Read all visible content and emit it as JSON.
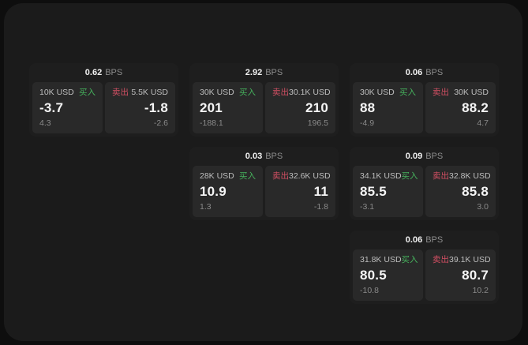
{
  "page": {
    "outer_background": "#0e0e0e",
    "window_background": "#1b1b1b",
    "card_background": "#1e1e1e",
    "panel_background": "#292929"
  },
  "labels": {
    "buy": "买入",
    "sell": "卖出",
    "bps": "BPS"
  },
  "colors": {
    "buy": "#46b15c",
    "sell": "#d24f63",
    "price_text": "#f5f5f5",
    "muted_text": "#8a8a8a",
    "size_text": "#bdbdbd"
  },
  "cards": [
    {
      "bps": "0.62",
      "col": 1,
      "row": 1,
      "buy": {
        "size": "10K USD",
        "price": "-3.7",
        "delta": "4.3"
      },
      "sell": {
        "size": "5.5K USD",
        "price": "-1.8",
        "delta": "-2.6"
      }
    },
    {
      "bps": "2.92",
      "col": 2,
      "row": 1,
      "buy": {
        "size": "30K USD",
        "price": "201",
        "delta": "-188.1"
      },
      "sell": {
        "size": "30.1K USD",
        "price": "210",
        "delta": "196.5"
      }
    },
    {
      "bps": "0.06",
      "col": 3,
      "row": 1,
      "buy": {
        "size": "30K USD",
        "price": "88",
        "delta": "-4.9"
      },
      "sell": {
        "size": "30K USD",
        "price": "88.2",
        "delta": "4.7"
      }
    },
    {
      "bps": "0.03",
      "col": 2,
      "row": 2,
      "buy": {
        "size": "28K USD",
        "price": "10.9",
        "delta": "1.3"
      },
      "sell": {
        "size": "32.6K USD",
        "price": "11",
        "delta": "-1.8"
      }
    },
    {
      "bps": "0.09",
      "col": 3,
      "row": 2,
      "buy": {
        "size": "34.1K USD",
        "price": "85.5",
        "delta": "-3.1"
      },
      "sell": {
        "size": "32.8K USD",
        "price": "85.8",
        "delta": "3.0"
      }
    },
    {
      "bps": "0.06",
      "col": 3,
      "row": 3,
      "buy": {
        "size": "31.8K USD",
        "price": "80.5",
        "delta": "-10.8"
      },
      "sell": {
        "size": "39.1K USD",
        "price": "80.7",
        "delta": "10.2"
      }
    }
  ]
}
